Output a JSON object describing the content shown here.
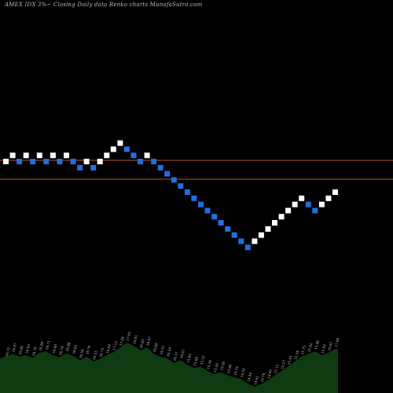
{
  "header": {
    "title": "AMEX IDX 3%~ Closing Daily data Renko charts MunafaSutra.com"
  },
  "colors": {
    "background": "#000000",
    "up_brick": "#ffffff",
    "down_brick": "#1f6fe0",
    "reference_line": "#b5561f",
    "volume_fill": "#0f3a12",
    "volume_label": "#bdbdbd"
  },
  "chart_data": {
    "type": "renko",
    "title": "AMEX IDX 3%~ Closing Daily data Renko charts MunafaSutra.com",
    "brick_directions": [
      "up",
      "up",
      "down",
      "up",
      "down",
      "up",
      "down",
      "up",
      "down",
      "up",
      "down",
      "down",
      "up",
      "down",
      "up",
      "up",
      "up",
      "up",
      "down",
      "down",
      "down",
      "up",
      "down",
      "down",
      "down",
      "down",
      "down",
      "down",
      "down",
      "down",
      "down",
      "down",
      "down",
      "down",
      "down",
      "down",
      "down",
      "up",
      "up",
      "up",
      "up",
      "up",
      "up",
      "up",
      "up",
      "down",
      "down",
      "up",
      "up",
      "up"
    ],
    "brick_levels": [
      0,
      1,
      0,
      1,
      0,
      1,
      0,
      1,
      0,
      1,
      0,
      -1,
      0,
      -1,
      0,
      1,
      2,
      3,
      2,
      1,
      0,
      1,
      0,
      -1,
      -2,
      -3,
      -4,
      -5,
      -6,
      -7,
      -8,
      -9,
      -10,
      -11,
      -12,
      -13,
      -14,
      -13,
      -12,
      -11,
      -10,
      -9,
      -8,
      -7,
      -6,
      -7,
      -8,
      -7,
      -6,
      -5
    ],
    "reference_lines": [
      "upper",
      "lower"
    ],
    "volume": {
      "relative_heights": [
        0.55,
        0.62,
        0.58,
        0.6,
        0.56,
        0.64,
        0.66,
        0.6,
        0.57,
        0.63,
        0.59,
        0.52,
        0.58,
        0.5,
        0.54,
        0.6,
        0.65,
        0.72,
        0.8,
        0.75,
        0.68,
        0.72,
        0.62,
        0.58,
        0.55,
        0.48,
        0.52,
        0.45,
        0.4,
        0.42,
        0.35,
        0.3,
        0.33,
        0.28,
        0.25,
        0.22,
        0.15,
        0.1,
        0.14,
        0.2,
        0.28,
        0.35,
        0.42,
        0.5,
        0.58,
        0.62,
        0.66,
        0.6,
        0.64,
        0.7
      ],
      "labels": [
        "16.72",
        "16.97",
        "16.85",
        "16.93",
        "16.76",
        "16.89",
        "16.71",
        "16.90",
        "16.74",
        "16.88",
        "16.62",
        "16.58",
        "16.79",
        "16.55",
        "16.73",
        "16.94",
        "17.13",
        "17.28",
        "17.05",
        "16.91",
        "16.83",
        "16.97",
        "16.69",
        "16.51",
        "16.34",
        "16.17",
        "16.01",
        "15.85",
        "15.68",
        "15.52",
        "15.36",
        "15.20",
        "15.05",
        "14.90",
        "14.74",
        "14.59",
        "14.44",
        "14.61",
        "14.79",
        "14.95",
        "15.11",
        "15.27",
        "15.43",
        "15.59",
        "15.75",
        "15.62",
        "15.48",
        "15.64",
        "15.81",
        "17.09"
      ]
    }
  }
}
